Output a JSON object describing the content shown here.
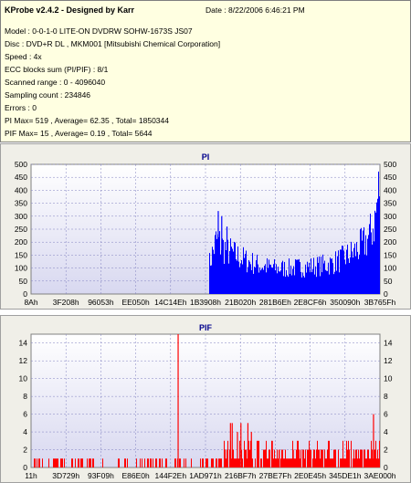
{
  "app": {
    "title": "KProbe v2.4.2 - Designed by Karr",
    "date": "Date : 8/22/2006 6:46:21 PM"
  },
  "info": [
    "Model : 0-0-1-0 LITE-ON DVDRW SOHW-1673S JS07",
    "Disc : DVD+R DL , MKM001 [Mitsubishi Chemical Corporation]",
    "Speed : 4x",
    "ECC blocks sum (PI/PIF) : 8/1",
    "Scanned range : 0 - 4096040",
    "Sampling count : 234846",
    "Errors : 0",
    "PI Max= 519 , Average= 62.35 , Total= 1850344",
    "PIF Max= 15 , Average= 0.19 , Total= 5644"
  ],
  "colors": {
    "bar": "#ff0000",
    "plot_bg_top": "#ffffff",
    "plot_bg_bottom": "#d8d8f0",
    "grid": "#8080c0"
  },
  "chart_data": [
    {
      "type": "bar",
      "title": "PI",
      "ylim": [
        0,
        500
      ],
      "y_ticks": [
        "0",
        "50",
        "100",
        "150",
        "200",
        "250",
        "300",
        "350",
        "400",
        "450",
        "500"
      ],
      "x_tick_labels": [
        "8Ah",
        "3F208h",
        "96053h",
        "EE050h",
        "14C14Eh",
        "1B3908h",
        "21B020h",
        "281B6Eh",
        "2E8CF6h",
        "350090h",
        "3B765Fh"
      ],
      "bar_color": "#0000ff",
      "series": [
        {
          "name": "PI",
          "x_start": 0.51,
          "x_end": 1.0,
          "profile": [
            [
              0.51,
              130
            ],
            [
              0.53,
              230
            ],
            [
              0.55,
              200
            ],
            [
              0.58,
              170
            ],
            [
              0.62,
              140
            ],
            [
              0.66,
              120
            ],
            [
              0.7,
              110
            ],
            [
              0.74,
              110
            ],
            [
              0.78,
              115
            ],
            [
              0.82,
              120
            ],
            [
              0.86,
              130
            ],
            [
              0.89,
              150
            ],
            [
              0.92,
              175
            ],
            [
              0.95,
              210
            ],
            [
              0.97,
              250
            ],
            [
              0.985,
              320
            ],
            [
              1.0,
              500
            ]
          ],
          "spikes": [
            [
              0.535,
              320
            ],
            [
              0.545,
              300
            ],
            [
              0.56,
              260
            ]
          ]
        }
      ]
    },
    {
      "type": "bar",
      "title": "PIF",
      "ylim": [
        0,
        15
      ],
      "y_ticks": [
        "0",
        "2",
        "4",
        "6",
        "8",
        "10",
        "12",
        "14"
      ],
      "x_tick_labels": [
        "11h",
        "3D729h",
        "93F09h",
        "E86E0h",
        "144F2Eh",
        "1AD971h",
        "216BF7h",
        "27BE7Fh",
        "2E0E45h",
        "345DE1h",
        "3AE000h"
      ],
      "bar_color": "#ff0000",
      "series": [
        {
          "name": "PIF",
          "spikes": [
            [
              0.42,
              15
            ],
            [
              0.57,
              5
            ],
            [
              0.575,
              5
            ],
            [
              0.59,
              4
            ],
            [
              0.6,
              5
            ],
            [
              0.62,
              5
            ],
            [
              0.63,
              4
            ],
            [
              0.69,
              3
            ],
            [
              0.71,
              2
            ],
            [
              0.75,
              2
            ],
            [
              0.8,
              2
            ],
            [
              0.98,
              6
            ]
          ]
        }
      ]
    }
  ]
}
